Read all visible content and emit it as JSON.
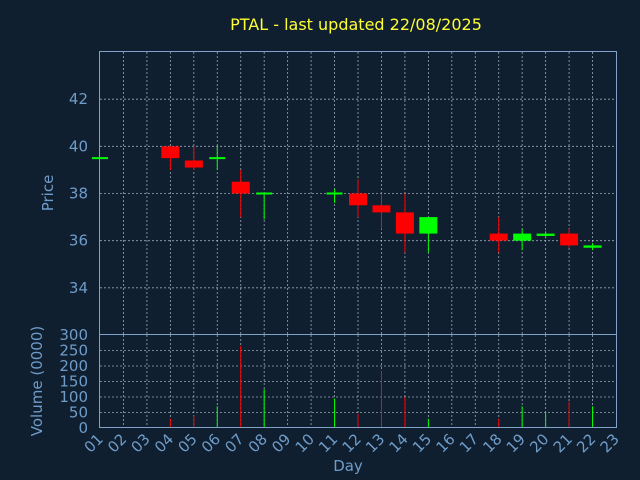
{
  "chart_data": [
    {
      "type": "candlestick",
      "title": "PTAL - last updated 22/08/2025",
      "ylabel": "Price",
      "ylim": [
        32,
        44
      ],
      "y_ticks": [
        34,
        36,
        38,
        40,
        42
      ],
      "grid": true,
      "colors": {
        "up": "#00ff00",
        "down": "#ff0000",
        "background": "#0f1f30",
        "text": "#6f9cc9",
        "title": "#ffff33"
      },
      "candles": [
        {
          "day": "01",
          "open": 39.5,
          "high": 39.5,
          "low": 39.5,
          "close": 39.5
        },
        {
          "day": "04",
          "open": 40.0,
          "high": 40.0,
          "low": 39.0,
          "close": 39.5
        },
        {
          "day": "05",
          "open": 39.4,
          "high": 40.0,
          "low": 39.0,
          "close": 39.1
        },
        {
          "day": "06",
          "open": 39.5,
          "high": 40.0,
          "low": 39.0,
          "close": 39.5
        },
        {
          "day": "07",
          "open": 38.5,
          "high": 39.0,
          "low": 37.0,
          "close": 38.0
        },
        {
          "day": "08",
          "open": 38.0,
          "high": 38.0,
          "low": 36.9,
          "close": 38.0
        },
        {
          "day": "11",
          "open": 38.0,
          "high": 38.2,
          "low": 37.6,
          "close": 38.0
        },
        {
          "day": "12",
          "open": 38.0,
          "high": 38.6,
          "low": 37.0,
          "close": 37.5
        },
        {
          "day": "13",
          "open": 37.5,
          "high": 38.0,
          "low": 36.5,
          "close": 37.2
        },
        {
          "day": "14",
          "open": 37.2,
          "high": 38.0,
          "low": 35.5,
          "close": 36.3
        },
        {
          "day": "15",
          "open": 36.3,
          "high": 37.0,
          "low": 35.5,
          "close": 37.0
        },
        {
          "day": "18",
          "open": 36.3,
          "high": 37.0,
          "low": 35.5,
          "close": 36.0
        },
        {
          "day": "19",
          "open": 36.0,
          "high": 36.5,
          "low": 35.6,
          "close": 36.3
        },
        {
          "day": "20",
          "open": 36.2,
          "high": 36.4,
          "low": 36.1,
          "close": 36.3
        },
        {
          "day": "21",
          "open": 36.3,
          "high": 36.5,
          "low": 35.7,
          "close": 35.8
        },
        {
          "day": "22",
          "open": 35.7,
          "high": 35.9,
          "low": 35.6,
          "close": 35.8
        }
      ]
    },
    {
      "type": "bar",
      "ylabel": "Volume (0000)",
      "xlabel": "Day",
      "ylim": [
        0,
        300
      ],
      "y_ticks": [
        0,
        50,
        100,
        150,
        200,
        250,
        300
      ],
      "grid": true,
      "categories": [
        "01",
        "02",
        "03",
        "04",
        "05",
        "06",
        "07",
        "08",
        "09",
        "10",
        "11",
        "12",
        "13",
        "14",
        "15",
        "16",
        "17",
        "18",
        "19",
        "20",
        "21",
        "22",
        "23"
      ],
      "bars": [
        {
          "day": "04",
          "value": 30,
          "direction": "down"
        },
        {
          "day": "05",
          "value": 40,
          "direction": "down"
        },
        {
          "day": "06",
          "value": 70,
          "direction": "up"
        },
        {
          "day": "07",
          "value": 265,
          "direction": "down"
        },
        {
          "day": "08",
          "value": 125,
          "direction": "up"
        },
        {
          "day": "11",
          "value": 95,
          "direction": "up"
        },
        {
          "day": "12",
          "value": 45,
          "direction": "down"
        },
        {
          "day": "13",
          "value": 185,
          "direction": "down"
        },
        {
          "day": "14",
          "value": 100,
          "direction": "down"
        },
        {
          "day": "15",
          "value": 30,
          "direction": "up"
        },
        {
          "day": "18",
          "value": 30,
          "direction": "down"
        },
        {
          "day": "19",
          "value": 70,
          "direction": "up"
        },
        {
          "day": "20",
          "value": 50,
          "direction": "up"
        },
        {
          "day": "21",
          "value": 85,
          "direction": "down"
        },
        {
          "day": "22",
          "value": 70,
          "direction": "up"
        }
      ]
    }
  ]
}
